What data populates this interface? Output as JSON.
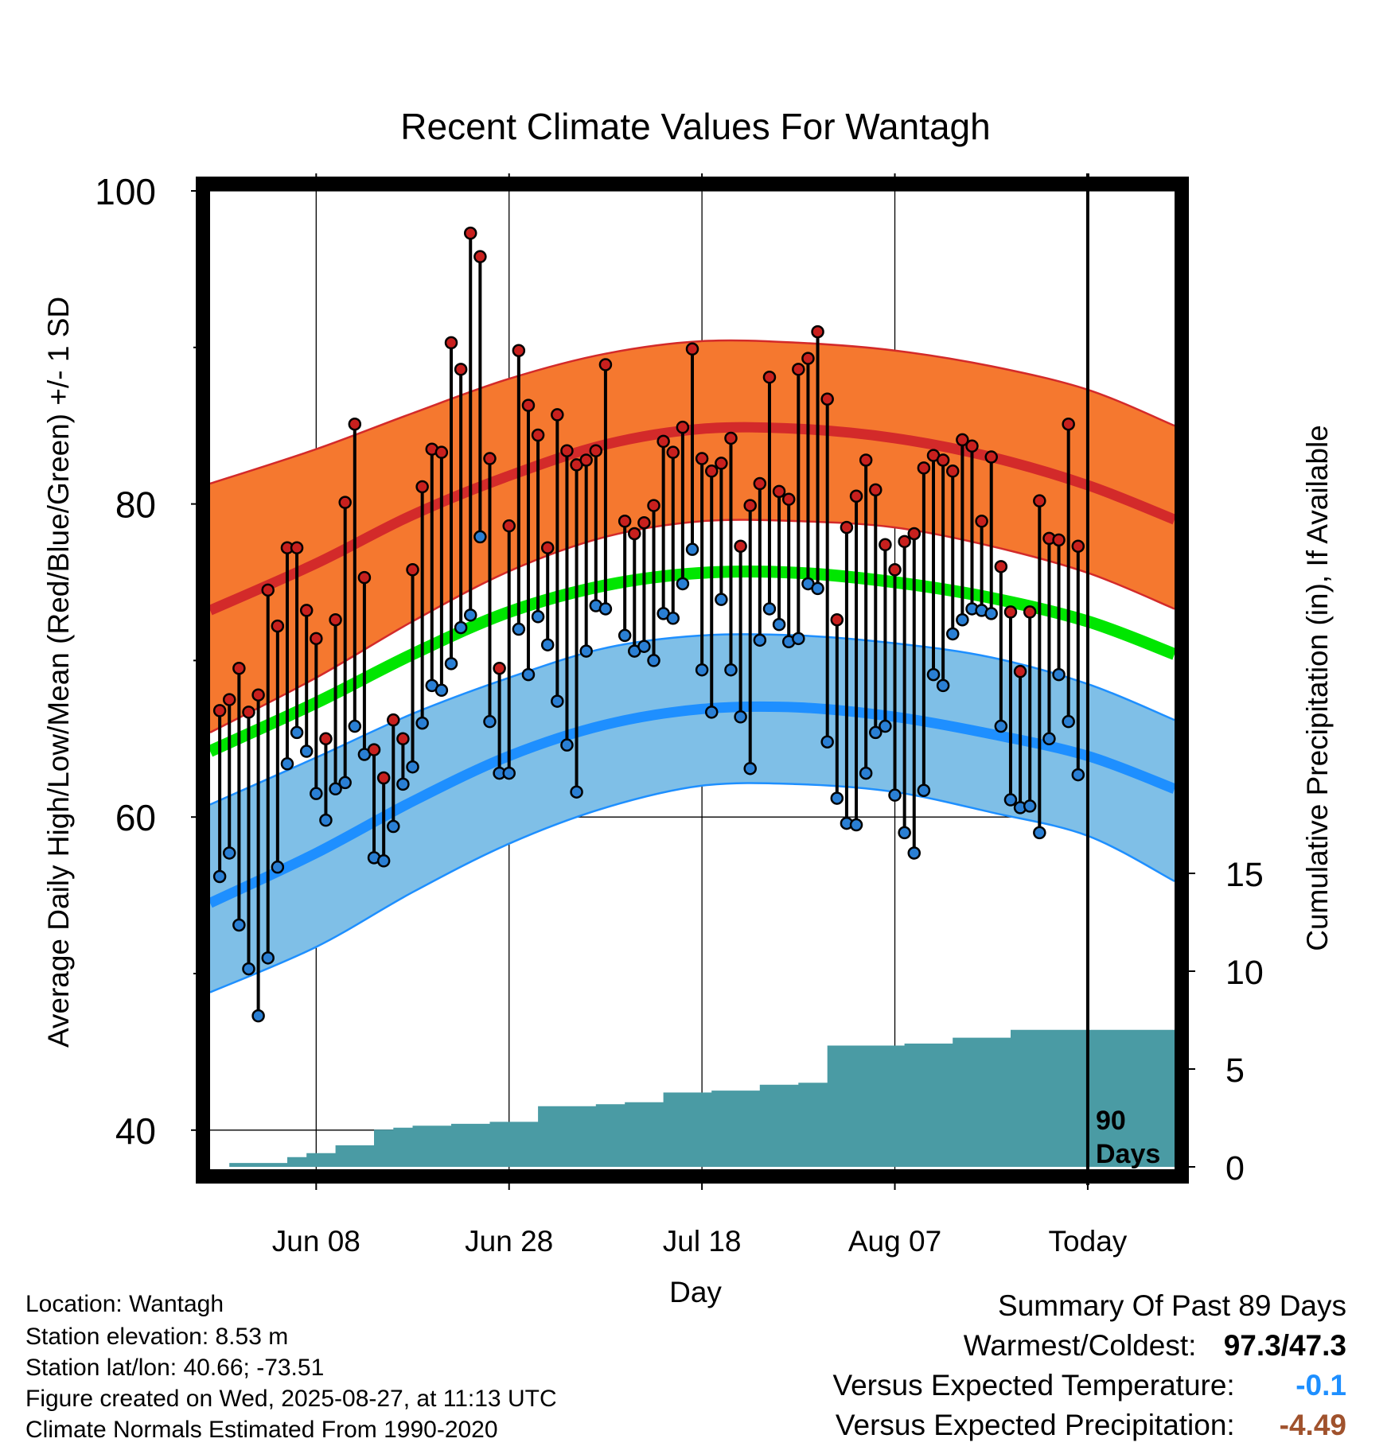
{
  "chart_data": {
    "type": "line",
    "title": "Recent Climate Values For Wantagh",
    "xlabel": "Day",
    "ylabel": "Average Daily High/Low/Mean (Red/Blue/Green) +/- 1 SD",
    "y2label": "Cumulative Precipitation (in), If Available",
    "x_start": "2025-05-28",
    "x_end": "2025-09-05",
    "today": "2025-08-27",
    "today_label": "Today",
    "ylim": [
      37.5,
      100
    ],
    "y2lim": [
      0,
      17
    ],
    "yticks": [
      40,
      60,
      80,
      100
    ],
    "y2ticks": [
      0,
      5,
      10,
      15
    ],
    "x_tick_dates": [
      "2025-06-08",
      "2025-06-28",
      "2025-07-18",
      "2025-08-07",
      "2025-08-27"
    ],
    "x_tick_labels": [
      "Jun 08",
      "Jun 28",
      "Jul 18",
      "Aug 07",
      "Today"
    ],
    "grid": true,
    "days_label": [
      "90",
      "Days"
    ],
    "normal_high": [
      [
        "2025-05-28",
        73.2
      ],
      [
        "2025-06-08",
        76.2
      ],
      [
        "2025-06-18",
        79.3
      ],
      [
        "2025-06-28",
        81.8
      ],
      [
        "2025-07-08",
        83.8
      ],
      [
        "2025-07-18",
        84.8
      ],
      [
        "2025-07-28",
        84.8
      ],
      [
        "2025-08-07",
        84.2
      ],
      [
        "2025-08-17",
        83.0
      ],
      [
        "2025-08-27",
        81.2
      ],
      [
        "2025-09-05",
        79.0
      ]
    ],
    "high_sd_upper": [
      [
        "2025-05-28",
        81.3
      ],
      [
        "2025-06-08",
        83.5
      ],
      [
        "2025-06-18",
        85.8
      ],
      [
        "2025-06-28",
        88.0
      ],
      [
        "2025-07-08",
        89.6
      ],
      [
        "2025-07-18",
        90.4
      ],
      [
        "2025-07-28",
        90.3
      ],
      [
        "2025-08-07",
        89.8
      ],
      [
        "2025-08-17",
        88.8
      ],
      [
        "2025-08-27",
        87.3
      ],
      [
        "2025-09-05",
        85.0
      ]
    ],
    "high_sd_lower": [
      [
        "2025-05-28",
        65.4
      ],
      [
        "2025-06-08",
        68.9
      ],
      [
        "2025-06-18",
        72.5
      ],
      [
        "2025-06-28",
        75.7
      ],
      [
        "2025-07-08",
        77.9
      ],
      [
        "2025-07-18",
        78.9
      ],
      [
        "2025-07-28",
        78.9
      ],
      [
        "2025-08-07",
        78.5
      ],
      [
        "2025-08-17",
        77.3
      ],
      [
        "2025-08-27",
        75.6
      ],
      [
        "2025-09-05",
        73.3
      ]
    ],
    "normal_mean": [
      [
        "2025-05-28",
        64.2
      ],
      [
        "2025-06-08",
        67.3
      ],
      [
        "2025-06-18",
        70.4
      ],
      [
        "2025-06-28",
        73.1
      ],
      [
        "2025-07-08",
        74.8
      ],
      [
        "2025-07-18",
        75.6
      ],
      [
        "2025-07-28",
        75.6
      ],
      [
        "2025-08-07",
        75.0
      ],
      [
        "2025-08-17",
        74.0
      ],
      [
        "2025-08-27",
        72.5
      ],
      [
        "2025-09-05",
        70.4
      ]
    ],
    "normal_low": [
      [
        "2025-05-28",
        54.5
      ],
      [
        "2025-06-08",
        57.7
      ],
      [
        "2025-06-18",
        61.0
      ],
      [
        "2025-06-28",
        63.9
      ],
      [
        "2025-07-08",
        65.9
      ],
      [
        "2025-07-18",
        66.9
      ],
      [
        "2025-07-28",
        67.0
      ],
      [
        "2025-08-07",
        66.4
      ],
      [
        "2025-08-17",
        65.3
      ],
      [
        "2025-08-27",
        63.9
      ],
      [
        "2025-09-05",
        61.8
      ]
    ],
    "low_sd_upper": [
      [
        "2025-05-28",
        60.8
      ],
      [
        "2025-06-08",
        63.8
      ],
      [
        "2025-06-18",
        66.6
      ],
      [
        "2025-06-28",
        68.9
      ],
      [
        "2025-07-08",
        70.8
      ],
      [
        "2025-07-18",
        71.6
      ],
      [
        "2025-07-28",
        71.6
      ],
      [
        "2025-08-07",
        71.1
      ],
      [
        "2025-08-17",
        70.2
      ],
      [
        "2025-08-27",
        68.5
      ],
      [
        "2025-09-05",
        66.2
      ]
    ],
    "low_sd_lower": [
      [
        "2025-05-28",
        48.8
      ],
      [
        "2025-06-08",
        51.7
      ],
      [
        "2025-06-18",
        55.2
      ],
      [
        "2025-06-28",
        58.3
      ],
      [
        "2025-07-08",
        60.6
      ],
      [
        "2025-07-18",
        62.0
      ],
      [
        "2025-07-28",
        62.1
      ],
      [
        "2025-08-07",
        61.6
      ],
      [
        "2025-08-17",
        60.3
      ],
      [
        "2025-08-27",
        58.8
      ],
      [
        "2025-09-05",
        55.9
      ]
    ],
    "daily_observations": [
      [
        "2025-05-29",
        66.8,
        56.2
      ],
      [
        "2025-05-30",
        67.5,
        57.7
      ],
      [
        "2025-05-31",
        69.5,
        53.1
      ],
      [
        "2025-06-01",
        66.7,
        50.3
      ],
      [
        "2025-06-02",
        67.8,
        47.3
      ],
      [
        "2025-06-03",
        74.5,
        51.0
      ],
      [
        "2025-06-04",
        72.2,
        56.8
      ],
      [
        "2025-06-05",
        77.2,
        63.4
      ],
      [
        "2025-06-06",
        77.2,
        65.4
      ],
      [
        "2025-06-07",
        73.2,
        64.2
      ],
      [
        "2025-06-08",
        71.4,
        61.5
      ],
      [
        "2025-06-09",
        65.0,
        59.8
      ],
      [
        "2025-06-10",
        72.6,
        61.8
      ],
      [
        "2025-06-11",
        80.1,
        62.2
      ],
      [
        "2025-06-12",
        85.1,
        65.8
      ],
      [
        "2025-06-13",
        75.3,
        64.0
      ],
      [
        "2025-06-14",
        64.3,
        57.4
      ],
      [
        "2025-06-15",
        62.5,
        57.2
      ],
      [
        "2025-06-16",
        66.2,
        59.4
      ],
      [
        "2025-06-17",
        65.0,
        62.1
      ],
      [
        "2025-06-18",
        75.8,
        63.2
      ],
      [
        "2025-06-19",
        81.1,
        66.0
      ],
      [
        "2025-06-20",
        83.5,
        68.4
      ],
      [
        "2025-06-21",
        83.3,
        68.1
      ],
      [
        "2025-06-22",
        90.3,
        69.8
      ],
      [
        "2025-06-23",
        88.6,
        72.1
      ],
      [
        "2025-06-24",
        97.3,
        72.9
      ],
      [
        "2025-06-25",
        95.8,
        77.9
      ],
      [
        "2025-06-26",
        82.9,
        66.1
      ],
      [
        "2025-06-27",
        69.5,
        62.8
      ],
      [
        "2025-06-28",
        78.6,
        62.8
      ],
      [
        "2025-06-29",
        89.8,
        72.0
      ],
      [
        "2025-06-30",
        86.3,
        69.1
      ],
      [
        "2025-07-01",
        84.4,
        72.8
      ],
      [
        "2025-07-02",
        77.2,
        71.0
      ],
      [
        "2025-07-03",
        85.7,
        67.4
      ],
      [
        "2025-07-04",
        83.4,
        64.6
      ],
      [
        "2025-07-05",
        82.5,
        61.6
      ],
      [
        "2025-07-06",
        82.8,
        70.6
      ],
      [
        "2025-07-07",
        83.4,
        73.5
      ],
      [
        "2025-07-08",
        88.9,
        73.3
      ],
      [
        "2025-07-10",
        78.9,
        71.6
      ],
      [
        "2025-07-11",
        78.1,
        70.6
      ],
      [
        "2025-07-12",
        78.8,
        70.9
      ],
      [
        "2025-07-13",
        79.9,
        70.0
      ],
      [
        "2025-07-14",
        84.0,
        73.0
      ],
      [
        "2025-07-15",
        83.3,
        72.7
      ],
      [
        "2025-07-16",
        84.9,
        74.9
      ],
      [
        "2025-07-17",
        89.9,
        77.1
      ],
      [
        "2025-07-18",
        82.9,
        69.4
      ],
      [
        "2025-07-19",
        82.1,
        66.7
      ],
      [
        "2025-07-20",
        82.6,
        73.9
      ],
      [
        "2025-07-21",
        84.2,
        69.4
      ],
      [
        "2025-07-22",
        77.3,
        66.4
      ],
      [
        "2025-07-23",
        79.9,
        63.1
      ],
      [
        "2025-07-24",
        81.3,
        71.3
      ],
      [
        "2025-07-25",
        88.1,
        73.3
      ],
      [
        "2025-07-26",
        80.8,
        72.3
      ],
      [
        "2025-07-27",
        80.3,
        71.2
      ],
      [
        "2025-07-28",
        88.6,
        71.4
      ],
      [
        "2025-07-29",
        89.3,
        74.9
      ],
      [
        "2025-07-30",
        91.0,
        74.6
      ],
      [
        "2025-07-31",
        86.7,
        64.8
      ],
      [
        "2025-08-01",
        72.6,
        61.2
      ],
      [
        "2025-08-02",
        78.5,
        59.6
      ],
      [
        "2025-08-03",
        80.5,
        59.5
      ],
      [
        "2025-08-04",
        82.8,
        62.8
      ],
      [
        "2025-08-05",
        80.9,
        65.4
      ],
      [
        "2025-08-06",
        77.4,
        65.8
      ],
      [
        "2025-08-07",
        75.8,
        61.4
      ],
      [
        "2025-08-08",
        77.6,
        59.0
      ],
      [
        "2025-08-09",
        78.1,
        57.7
      ],
      [
        "2025-08-10",
        82.3,
        61.7
      ],
      [
        "2025-08-11",
        83.1,
        69.1
      ],
      [
        "2025-08-12",
        82.8,
        68.4
      ],
      [
        "2025-08-13",
        82.1,
        71.7
      ],
      [
        "2025-08-14",
        84.1,
        72.6
      ],
      [
        "2025-08-15",
        83.7,
        73.3
      ],
      [
        "2025-08-16",
        78.9,
        73.2
      ],
      [
        "2025-08-17",
        83.0,
        73.0
      ],
      [
        "2025-08-18",
        76.0,
        65.8
      ],
      [
        "2025-08-19",
        73.1,
        61.1
      ],
      [
        "2025-08-20",
        69.3,
        60.6
      ],
      [
        "2025-08-21",
        73.1,
        60.7
      ],
      [
        "2025-08-22",
        80.2,
        59.0
      ],
      [
        "2025-08-23",
        77.8,
        65.0
      ],
      [
        "2025-08-24",
        77.7,
        69.1
      ],
      [
        "2025-08-25",
        85.1,
        66.1
      ],
      [
        "2025-08-26",
        77.3,
        62.7
      ]
    ],
    "cumulative_precipitation": [
      [
        "2025-05-28",
        0
      ],
      [
        "2025-05-30",
        0.2
      ],
      [
        "2025-06-05",
        0.5
      ],
      [
        "2025-06-07",
        0.7
      ],
      [
        "2025-06-10",
        1.1
      ],
      [
        "2025-06-14",
        1.9
      ],
      [
        "2025-06-16",
        2.0
      ],
      [
        "2025-06-18",
        2.1
      ],
      [
        "2025-06-22",
        2.2
      ],
      [
        "2025-06-26",
        2.3
      ],
      [
        "2025-07-01",
        3.1
      ],
      [
        "2025-07-07",
        3.2
      ],
      [
        "2025-07-10",
        3.3
      ],
      [
        "2025-07-14",
        3.8
      ],
      [
        "2025-07-19",
        3.9
      ],
      [
        "2025-07-24",
        4.2
      ],
      [
        "2025-07-28",
        4.3
      ],
      [
        "2025-07-31",
        6.2
      ],
      [
        "2025-08-08",
        6.3
      ],
      [
        "2025-08-13",
        6.6
      ],
      [
        "2025-08-19",
        7.0
      ],
      [
        "2025-08-27",
        7.0
      ]
    ]
  },
  "footer": {
    "location": "Location: Wantagh",
    "elevation": "Station elevation: 8.53 m",
    "latlon": "Station lat/lon: 40.66; -73.51",
    "created": "Figure created on Wed, 2025-08-27, at 11:13 UTC",
    "normals": "Climate Normals Estimated From 1990-2020"
  },
  "summary": {
    "heading": "Summary Of Past 89 Days",
    "warmest_coldest_label": "Warmest/Coldest:",
    "warmest_coldest_value": "97.3/47.3",
    "temp_label": "Versus Expected Temperature:",
    "temp_value": "-0.1",
    "precip_label": "Versus Expected Precipitation:",
    "precip_value": "-4.49"
  },
  "colors": {
    "high_band": "#F5782F",
    "high_line": "#D32A2A",
    "low_band": "#7FBFE7",
    "low_line": "#1E8FFF",
    "mean_line": "#00E600",
    "precip_fill": "#4A9BA4",
    "high_dot": "#C8201E",
    "low_dot": "#2A7FD4",
    "temp_value": "#1E8FFF",
    "precip_value": "#A0522D"
  }
}
